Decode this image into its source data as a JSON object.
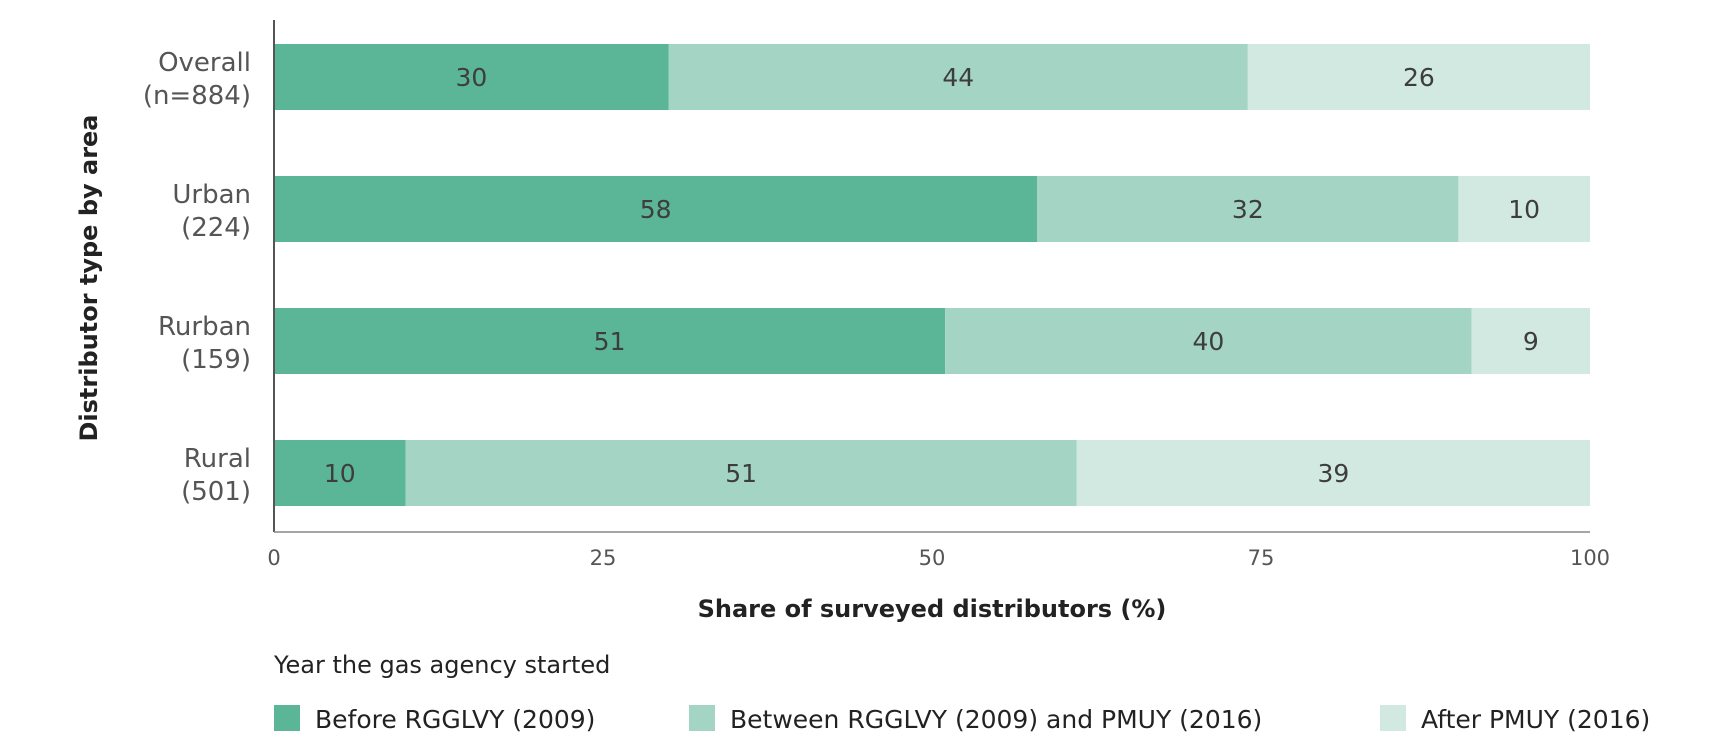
{
  "chart_data": {
    "type": "bar",
    "orientation": "horizontal",
    "stacked": true,
    "title": "",
    "xlabel": "Share of surveyed distributors (%)",
    "ylabel": "Distributor type by area",
    "xlim": [
      0,
      100
    ],
    "xticks": [
      "0",
      "25",
      "50",
      "75",
      "100"
    ],
    "categories": [
      {
        "line1": "Overall",
        "line2": "(n=884)"
      },
      {
        "line1": "Urban",
        "line2": "(224)"
      },
      {
        "line1": "Rurban",
        "line2": "(159)"
      },
      {
        "line1": "Rural",
        "line2": "(501)"
      }
    ],
    "series": [
      {
        "name": "Before RGGLVY (2009)",
        "color": "#5bb697",
        "values": [
          30,
          58,
          51,
          10
        ]
      },
      {
        "name": "Between RGGLVY (2009) and PMUY (2016)",
        "color": "#a4d4c3",
        "values": [
          44,
          32,
          40,
          51
        ]
      },
      {
        "name": "After PMUY (2016)",
        "color": "#d1e9e0",
        "values": [
          26,
          10,
          9,
          39
        ]
      }
    ],
    "legend": {
      "title": "Year the gas agency started",
      "position": "bottom"
    },
    "grid": false
  }
}
